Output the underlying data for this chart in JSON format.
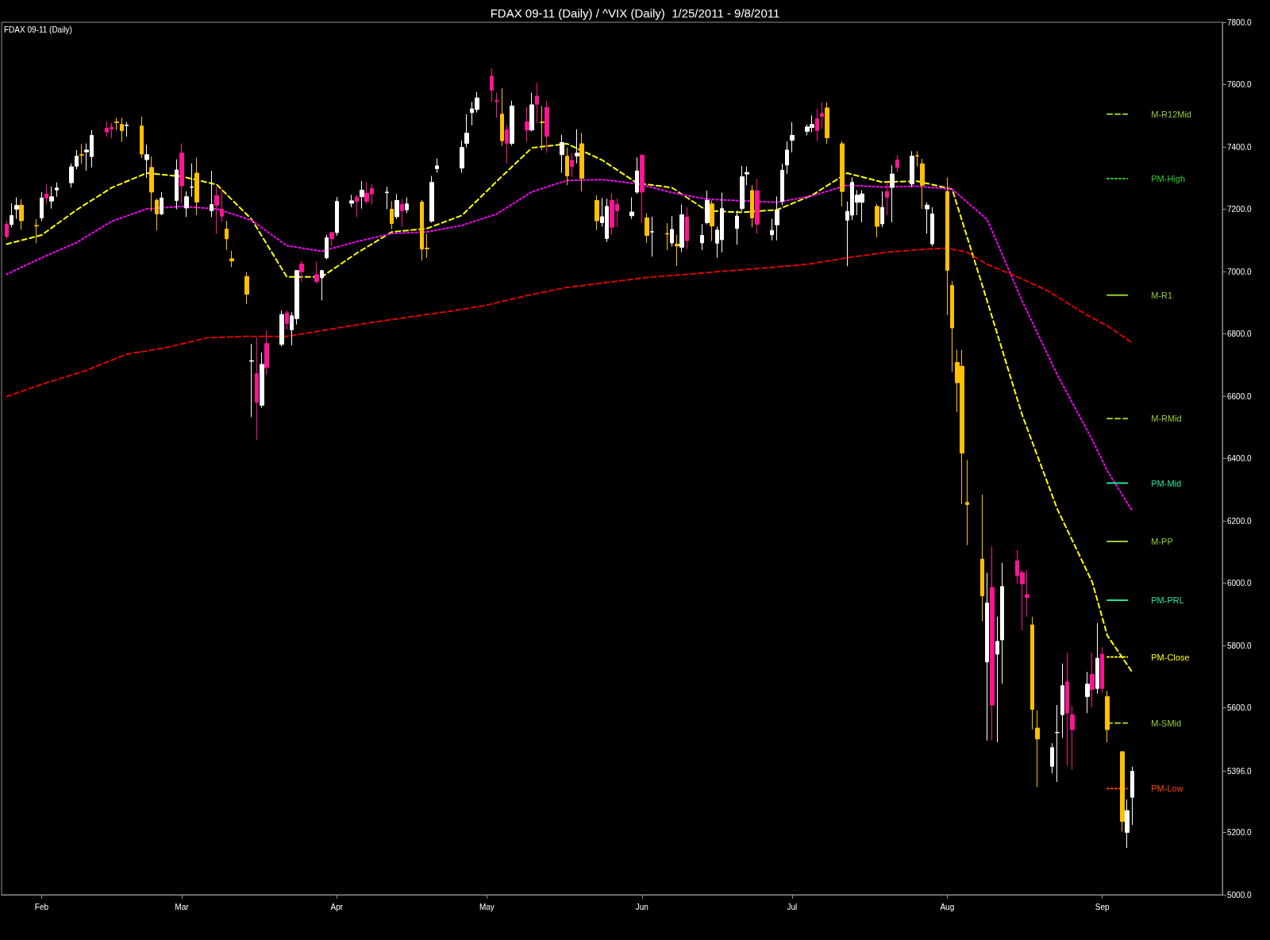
{
  "chart_data": {
    "type": "candlestick",
    "title": "FDAX 09-11 (Daily) / ^VIX (Daily)  1/25/2011 - 9/8/2011",
    "subtitle": "FDAX 09-11 (Daily)",
    "marker": "none",
    "xlim": [
      "2011-01-24",
      "2011-09-25"
    ],
    "xticks": [
      {
        "value": "2011-02-01",
        "label": "Feb"
      },
      {
        "value": "2011-03-01",
        "label": "Mar"
      },
      {
        "value": "2011-04-01",
        "label": "Apr"
      },
      {
        "value": "2011-05-01",
        "label": "May"
      },
      {
        "value": "2011-06-01",
        "label": "Jun"
      },
      {
        "value": "2011-07-01",
        "label": "Jul"
      },
      {
        "value": "2011-08-01",
        "label": "Aug"
      },
      {
        "value": "2011-09-01",
        "label": "Sep"
      }
    ],
    "ylim": [
      5000,
      7800
    ],
    "yticks": [
      {
        "value": 5000,
        "label": "5000.0"
      },
      {
        "value": 5200,
        "label": "5200.0"
      },
      {
        "value": 5396,
        "label": "5396.0"
      },
      {
        "value": 5600,
        "label": "5600.0"
      },
      {
        "value": 5800,
        "label": "5800.0"
      },
      {
        "value": 6000,
        "label": "6000.0"
      },
      {
        "value": 6200,
        "label": "6200.0"
      },
      {
        "value": 6400,
        "label": "6400.0"
      },
      {
        "value": 6600,
        "label": "6600.0"
      },
      {
        "value": 6800,
        "label": "6800.0"
      },
      {
        "value": 7000,
        "label": "7000.0"
      },
      {
        "value": 7200,
        "label": "7200.0"
      },
      {
        "value": 7400,
        "label": "7400.0"
      },
      {
        "value": 7600,
        "label": "7600.0"
      },
      {
        "value": 7800,
        "label": "7800.0"
      }
    ],
    "x": [
      "2011-01-25",
      "2011-01-26",
      "2011-01-27",
      "2011-01-28",
      "2011-01-31",
      "2011-02-01",
      "2011-02-02",
      "2011-02-03",
      "2011-02-04",
      "2011-02-07",
      "2011-02-08",
      "2011-02-09",
      "2011-02-10",
      "2011-02-11",
      "2011-02-14",
      "2011-02-15",
      "2011-02-16",
      "2011-02-17",
      "2011-02-18",
      "2011-02-21",
      "2011-02-22",
      "2011-02-23",
      "2011-02-24",
      "2011-02-25",
      "2011-02-28",
      "2011-03-01",
      "2011-03-02",
      "2011-03-03",
      "2011-03-04",
      "2011-03-07",
      "2011-03-08",
      "2011-03-09",
      "2011-03-10",
      "2011-03-11",
      "2011-03-14",
      "2011-03-15",
      "2011-03-16",
      "2011-03-17",
      "2011-03-18",
      "2011-03-21",
      "2011-03-22",
      "2011-03-23",
      "2011-03-24",
      "2011-03-25",
      "2011-03-28",
      "2011-03-29",
      "2011-03-30",
      "2011-03-31",
      "2011-04-01",
      "2011-04-04",
      "2011-04-05",
      "2011-04-06",
      "2011-04-07",
      "2011-04-08",
      "2011-04-11",
      "2011-04-12",
      "2011-04-13",
      "2011-04-14",
      "2011-04-15",
      "2011-04-18",
      "2011-04-19",
      "2011-04-20",
      "2011-04-21",
      "2011-04-26",
      "2011-04-27",
      "2011-04-28",
      "2011-04-29",
      "2011-05-02",
      "2011-05-03",
      "2011-05-04",
      "2011-05-05",
      "2011-05-06",
      "2011-05-09",
      "2011-05-10",
      "2011-05-11",
      "2011-05-12",
      "2011-05-13",
      "2011-05-16",
      "2011-05-17",
      "2011-05-18",
      "2011-05-19",
      "2011-05-20",
      "2011-05-23",
      "2011-05-24",
      "2011-05-25",
      "2011-05-26",
      "2011-05-27",
      "2011-05-30",
      "2011-05-31",
      "2011-06-01",
      "2011-06-02",
      "2011-06-03",
      "2011-06-06",
      "2011-06-07",
      "2011-06-08",
      "2011-06-09",
      "2011-06-10",
      "2011-06-13",
      "2011-06-14",
      "2011-06-15",
      "2011-06-16",
      "2011-06-17",
      "2011-06-20",
      "2011-06-21",
      "2011-06-22",
      "2011-06-23",
      "2011-06-24",
      "2011-06-27",
      "2011-06-28",
      "2011-06-29",
      "2011-06-30",
      "2011-07-01",
      "2011-07-04",
      "2011-07-05",
      "2011-07-06",
      "2011-07-07",
      "2011-07-08",
      "2011-07-11",
      "2011-07-12",
      "2011-07-13",
      "2011-07-14",
      "2011-07-15",
      "2011-07-18",
      "2011-07-19",
      "2011-07-20",
      "2011-07-21",
      "2011-07-22",
      "2011-07-25",
      "2011-07-26",
      "2011-07-27",
      "2011-07-28",
      "2011-07-29",
      "2011-08-01",
      "2011-08-02",
      "2011-08-03",
      "2011-08-04",
      "2011-08-05",
      "2011-08-08",
      "2011-08-09",
      "2011-08-10",
      "2011-08-11",
      "2011-08-12",
      "2011-08-15",
      "2011-08-16",
      "2011-08-17",
      "2011-08-18",
      "2011-08-19",
      "2011-08-22",
      "2011-08-23",
      "2011-08-24",
      "2011-08-25",
      "2011-08-26",
      "2011-08-29",
      "2011-08-30",
      "2011-08-31",
      "2011-09-01",
      "2011-09-02",
      "2011-09-05",
      "2011-09-06",
      "2011-09-07"
    ],
    "ohlc": [
      [
        7151,
        7163,
        7104,
        7112
      ],
      [
        7151,
        7219,
        7142,
        7180
      ],
      [
        7200,
        7238,
        7169,
        7212
      ],
      [
        7213,
        7232,
        7134,
        7163
      ],
      [
        7148,
        7168,
        7091,
        7146
      ],
      [
        7172,
        7255,
        7161,
        7236
      ],
      [
        7249,
        7279,
        7215,
        7236
      ],
      [
        7226,
        7272,
        7202,
        7240
      ],
      [
        7262,
        7286,
        7240,
        7268
      ],
      [
        7285,
        7347,
        7269,
        7336
      ],
      [
        7338,
        7390,
        7328,
        7370
      ],
      [
        7375,
        7409,
        7346,
        7373
      ],
      [
        7384,
        7411,
        7324,
        7390
      ],
      [
        7369,
        7454,
        7334,
        7437
      ],
      [
        7460,
        7482,
        7433,
        7448
      ],
      [
        7463,
        7477,
        7428,
        7457
      ],
      [
        7480,
        7493,
        7454,
        7478
      ],
      [
        7472,
        7493,
        7416,
        7452
      ],
      [
        7468,
        7480,
        7433,
        7470
      ],
      [
        7467,
        7497,
        7364,
        7377
      ],
      [
        7359,
        7407,
        7300,
        7375
      ],
      [
        7334,
        7369,
        7193,
        7255
      ],
      [
        7229,
        7234,
        7132,
        7185
      ],
      [
        7185,
        7255,
        7181,
        7236
      ],
      [
        7228,
        7360,
        7200,
        7326
      ],
      [
        7380,
        7411,
        7219,
        7275
      ],
      [
        7204,
        7257,
        7175,
        7240
      ],
      [
        7270,
        7347,
        7240,
        7272
      ],
      [
        7316,
        7366,
        7181,
        7223
      ],
      [
        7195,
        7323,
        7175,
        7215
      ],
      [
        7243,
        7272,
        7121,
        7212
      ],
      [
        7200,
        7266,
        7159,
        7178
      ],
      [
        7136,
        7163,
        7069,
        7105
      ],
      [
        7041,
        7067,
        7014,
        7034
      ],
      [
        6984,
        6997,
        6896,
        6927
      ],
      [
        6712,
        6768,
        6533,
        6714
      ],
      [
        6672,
        6787,
        6460,
        6580
      ],
      [
        6571,
        6740,
        6563,
        6702
      ],
      [
        6769,
        6810,
        6668,
        6692
      ],
      [
        6766,
        6875,
        6759,
        6862
      ],
      [
        6867,
        6875,
        6813,
        6833
      ],
      [
        6813,
        6869,
        6763,
        6858
      ],
      [
        6849,
        7005,
        6830,
        7003
      ],
      [
        7024,
        7035,
        6967,
        6999
      ],
      [
        6990,
        7031,
        6961,
        6968
      ],
      [
        6980,
        7005,
        6907,
        7003
      ],
      [
        7044,
        7118,
        7039,
        7108
      ],
      [
        7125,
        7127,
        7082,
        7105
      ],
      [
        7125,
        7239,
        7115,
        7225
      ],
      [
        7219,
        7246,
        7206,
        7227
      ],
      [
        7239,
        7246,
        7175,
        7225
      ],
      [
        7240,
        7290,
        7202,
        7261
      ],
      [
        7251,
        7287,
        7217,
        7225
      ],
      [
        7266,
        7280,
        7215,
        7249
      ],
      [
        7253,
        7272,
        7200,
        7255
      ],
      [
        7200,
        7226,
        7136,
        7154
      ],
      [
        7176,
        7249,
        7169,
        7228
      ],
      [
        7216,
        7232,
        7144,
        7195
      ],
      [
        7198,
        7238,
        7187,
        7217
      ],
      [
        7223,
        7229,
        7035,
        7072
      ],
      [
        7075,
        7121,
        7044,
        7073
      ],
      [
        7162,
        7307,
        7157,
        7286
      ],
      [
        7330,
        7363,
        7317,
        7339
      ],
      [
        7332,
        7420,
        7317,
        7398
      ],
      [
        7411,
        7505,
        7398,
        7444
      ],
      [
        7510,
        7544,
        7469,
        7522
      ],
      [
        7520,
        7576,
        7510,
        7557
      ],
      [
        7627,
        7652,
        7544,
        7582
      ],
      [
        7548,
        7574,
        7494,
        7546
      ],
      [
        7505,
        7588,
        7403,
        7420
      ],
      [
        7454,
        7471,
        7347,
        7411
      ],
      [
        7411,
        7548,
        7404,
        7531
      ],
      [
        7480,
        7528,
        7417,
        7454
      ],
      [
        7454,
        7574,
        7450,
        7535
      ],
      [
        7563,
        7605,
        7475,
        7537
      ],
      [
        7480,
        7531,
        7390,
        7478
      ],
      [
        7527,
        7548,
        7381,
        7434
      ],
      [
        7375,
        7439,
        7317,
        7414
      ],
      [
        7370,
        7398,
        7277,
        7307
      ],
      [
        7357,
        7380,
        7304,
        7337
      ],
      [
        7371,
        7457,
        7347,
        7380
      ],
      [
        7410,
        7445,
        7257,
        7299
      ],
      [
        7228,
        7245,
        7133,
        7163
      ],
      [
        7157,
        7236,
        7144,
        7176
      ],
      [
        7106,
        7234,
        7095,
        7209
      ],
      [
        7228,
        7252,
        7118,
        7142
      ],
      [
        7216,
        7234,
        7142,
        7195
      ],
      [
        7179,
        7238,
        7169,
        7191
      ],
      [
        7255,
        7366,
        7249,
        7323
      ],
      [
        7373,
        7377,
        7155,
        7255
      ],
      [
        7172,
        7187,
        7092,
        7116
      ],
      [
        7127,
        7176,
        7048,
        7128
      ],
      [
        7122,
        7155,
        7069,
        7120
      ],
      [
        7092,
        7178,
        7080,
        7135
      ],
      [
        7088,
        7118,
        7018,
        7082
      ],
      [
        7078,
        7215,
        7063,
        7182
      ],
      [
        7175,
        7206,
        7072,
        7099
      ],
      [
        7092,
        7152,
        7069,
        7116
      ],
      [
        7157,
        7260,
        7151,
        7228
      ],
      [
        7217,
        7228,
        7098,
        7146
      ],
      [
        7091,
        7144,
        7044,
        7133
      ],
      [
        7102,
        7253,
        7061,
        7202
      ],
      [
        7138,
        7195,
        7086,
        7178
      ],
      [
        7202,
        7339,
        7193,
        7304
      ],
      [
        7313,
        7337,
        7277,
        7318
      ],
      [
        7260,
        7277,
        7142,
        7172
      ],
      [
        7259,
        7298,
        7121,
        7152
      ],
      [
        7118,
        7169,
        7100,
        7132
      ],
      [
        7150,
        7241,
        7100,
        7198
      ],
      [
        7225,
        7346,
        7213,
        7325
      ],
      [
        7342,
        7418,
        7313,
        7390
      ],
      [
        7421,
        7479,
        7382,
        7437
      ],
      [
        7450,
        7472,
        7437,
        7464
      ],
      [
        7462,
        7501,
        7447,
        7472
      ],
      [
        7490,
        7522,
        7418,
        7453
      ],
      [
        7507,
        7543,
        7458,
        7498
      ],
      [
        7525,
        7543,
        7410,
        7429
      ],
      [
        7410,
        7418,
        7209,
        7257
      ],
      [
        7165,
        7225,
        7017,
        7193
      ],
      [
        7181,
        7302,
        7165,
        7286
      ],
      [
        7222,
        7261,
        7181,
        7245
      ],
      [
        7222,
        7261,
        7158,
        7249
      ],
      [
        7209,
        7217,
        7110,
        7145
      ],
      [
        7153,
        7257,
        7142,
        7206
      ],
      [
        7257,
        7286,
        7181,
        7238
      ],
      [
        7270,
        7341,
        7158,
        7313
      ],
      [
        7358,
        7373,
        7318,
        7334
      ],
      [
        7281,
        7386,
        7270,
        7370
      ],
      [
        7372,
        7386,
        7338,
        7370
      ],
      [
        7346,
        7362,
        7201,
        7277
      ],
      [
        7201,
        7222,
        7121,
        7213
      ],
      [
        7089,
        7206,
        7081,
        7185
      ],
      [
        7257,
        7302,
        6860,
        7004
      ],
      [
        6955,
        6969,
        6678,
        6819
      ],
      [
        6708,
        6749,
        6549,
        6643
      ],
      [
        6696,
        6749,
        6254,
        6417
      ],
      [
        6259,
        6395,
        6122,
        6252
      ],
      [
        6077,
        6284,
        5878,
        5959
      ],
      [
        5747,
        6033,
        5495,
        5936
      ],
      [
        5986,
        6118,
        5495,
        5609
      ],
      [
        5772,
        5892,
        5489,
        5813
      ],
      [
        5818,
        6065,
        5677,
        5989
      ],
      [
        6072,
        6107,
        5998,
        6024
      ],
      [
        6033,
        6042,
        5848,
        5998
      ],
      [
        5963,
        6042,
        5892,
        5954
      ],
      [
        5866,
        5892,
        5530,
        5595
      ],
      [
        5535,
        5592,
        5345,
        5500
      ],
      [
        5412,
        5486,
        5389,
        5472
      ],
      [
        5520,
        5609,
        5362,
        5521
      ],
      [
        5578,
        5742,
        5503,
        5671
      ],
      [
        5683,
        5777,
        5415,
        5583
      ],
      [
        5578,
        5606,
        5401,
        5530
      ],
      [
        5636,
        5715,
        5583,
        5676
      ],
      [
        5707,
        5777,
        5601,
        5659
      ],
      [
        5662,
        5871,
        5645,
        5759
      ],
      [
        5772,
        5795,
        5648,
        5662
      ],
      [
        5636,
        5654,
        5489,
        5530
      ],
      [
        5459,
        5459,
        5203,
        5235
      ],
      [
        5200,
        5306,
        5150,
        5270
      ],
      [
        5313,
        5411,
        5224,
        5396
      ]
    ],
    "colors": [
      "#ff1493",
      "#ffffff",
      "#ffffff",
      "#ffc000",
      "#ffc000",
      "#ffffff",
      "#ff1493",
      "#ffffff",
      "#ffffff",
      "#ffffff",
      "#ffffff",
      "#ffc000",
      "#ffffff",
      "#ffffff",
      "#ff1493",
      "#ff1493",
      "#ffc000",
      "#ffc000",
      "#ffffff",
      "#ffc000",
      "#ffffff",
      "#ffc000",
      "#ffc000",
      "#ffffff",
      "#ffffff",
      "#ff1493",
      "#ffffff",
      "#ffffff",
      "#ffc000",
      "#ffffff",
      "#ff1493",
      "#ff1493",
      "#ffc000",
      "#ffc000",
      "#ffc000",
      "#ffffff",
      "#ff1493",
      "#ffffff",
      "#ff1493",
      "#ffffff",
      "#ff1493",
      "#ffffff",
      "#ffffff",
      "#ff1493",
      "#ff1493",
      "#ffffff",
      "#ffffff",
      "#ff1493",
      "#ffffff",
      "#ffffff",
      "#ff1493",
      "#ffffff",
      "#ff1493",
      "#ff1493",
      "#ffffff",
      "#ffc000",
      "#ffffff",
      "#ff1493",
      "#ffffff",
      "#ffc000",
      "#ffc000",
      "#ffffff",
      "#ffffff",
      "#ffffff",
      "#ffffff",
      "#ffffff",
      "#ffffff",
      "#ff1493",
      "#ff1493",
      "#ffc000",
      "#ff1493",
      "#ffffff",
      "#ff1493",
      "#ffffff",
      "#ff1493",
      "#ffc000",
      "#ff1493",
      "#ffffff",
      "#ffc000",
      "#ff1493",
      "#ffffff",
      "#ffc000",
      "#ffc000",
      "#ffffff",
      "#ffffff",
      "#ff1493",
      "#ff1493",
      "#ffffff",
      "#ffffff",
      "#ff1493",
      "#ffc000",
      "#ffffff",
      "#ffc000",
      "#ffffff",
      "#ffc000",
      "#ffffff",
      "#ff1493",
      "#ffffff",
      "#ffffff",
      "#ffc000",
      "#ffffff",
      "#ffffff",
      "#ffffff",
      "#ffffff",
      "#ffffff",
      "#ffc000",
      "#ff1493",
      "#ffffff",
      "#ffffff",
      "#ffffff",
      "#ffffff",
      "#ffffff",
      "#ffffff",
      "#ffffff",
      "#ff1493",
      "#ff1493",
      "#ffc000",
      "#ffc000",
      "#ffffff",
      "#ffffff",
      "#ffffff",
      "#ffffff",
      "#ffc000",
      "#ffffff",
      "#ff1493",
      "#ffffff",
      "#ff1493",
      "#ffffff",
      "#ffc000",
      "#ffc000",
      "#ffffff",
      "#ffffff",
      "#ffc000",
      "#ffc000",
      "#ffc000",
      "#ffc000",
      "#ffc000",
      "#ffc000",
      "#ffffff",
      "#ff1493",
      "#ffffff",
      "#ffffff",
      "#ff1493",
      "#ff1493",
      "#ff1493",
      "#ffc000",
      "#ffc000",
      "#ffffff",
      "#ffffff",
      "#ffffff",
      "#ff1493",
      "#ff1493",
      "#ffffff",
      "#ff1493",
      "#ffffff",
      "#ff1493",
      "#ffc000",
      "#ffc000",
      "#ffffff",
      "#ffffff"
    ],
    "series": [
      {
        "type": "line",
        "color": "#ffff00",
        "line_style": "dashed",
        "x": [
          "2011-01-25",
          "2011-02-01",
          "2011-02-08",
          "2011-02-15",
          "2011-02-22",
          "2011-03-01",
          "2011-03-08",
          "2011-03-15",
          "2011-03-22",
          "2011-03-29",
          "2011-04-05",
          "2011-04-12",
          "2011-04-19",
          "2011-04-26",
          "2011-05-03",
          "2011-05-10",
          "2011-05-17",
          "2011-05-24",
          "2011-05-31",
          "2011-06-07",
          "2011-06-14",
          "2011-06-21",
          "2011-06-28",
          "2011-07-05",
          "2011-07-12",
          "2011-07-19",
          "2011-07-26",
          "2011-08-02",
          "2011-08-09",
          "2011-08-16",
          "2011-08-23",
          "2011-08-30",
          "2011-09-02",
          "2011-09-07"
        ],
        "values": [
          7088,
          7117,
          7198,
          7269,
          7316,
          7305,
          7279,
          7167,
          6983,
          6983,
          7059,
          7127,
          7138,
          7180,
          7290,
          7397,
          7410,
          7358,
          7284,
          7269,
          7195,
          7190,
          7198,
          7245,
          7316,
          7287,
          7290,
          7264,
          6905,
          6539,
          6238,
          6003,
          5832,
          5714
        ]
      },
      {
        "type": "line",
        "color": "#ff00ff",
        "line_style": "dotted",
        "x": [
          "2011-01-25",
          "2011-02-01",
          "2011-02-08",
          "2011-02-15",
          "2011-02-22",
          "2011-03-01",
          "2011-03-08",
          "2011-03-15",
          "2011-03-22",
          "2011-03-29",
          "2011-04-05",
          "2011-04-12",
          "2011-04-19",
          "2011-04-26",
          "2011-05-03",
          "2011-05-10",
          "2011-05-17",
          "2011-05-24",
          "2011-05-31",
          "2011-06-07",
          "2011-06-14",
          "2011-06-21",
          "2011-06-28",
          "2011-07-05",
          "2011-07-12",
          "2011-07-19",
          "2011-07-26",
          "2011-08-02",
          "2011-08-09",
          "2011-08-16",
          "2011-08-23",
          "2011-08-30",
          "2011-09-02",
          "2011-09-07"
        ],
        "values": [
          6991,
          7044,
          7093,
          7161,
          7201,
          7209,
          7201,
          7164,
          7083,
          7065,
          7096,
          7122,
          7127,
          7148,
          7185,
          7256,
          7292,
          7295,
          7282,
          7253,
          7232,
          7227,
          7222,
          7243,
          7277,
          7271,
          7274,
          7264,
          7167,
          6905,
          6669,
          6460,
          6361,
          6232
        ]
      },
      {
        "type": "line",
        "color": "#e00000",
        "line_style": "dashed",
        "x": [
          "2011-01-25",
          "2011-02-02",
          "2011-02-10",
          "2011-02-18",
          "2011-02-26",
          "2011-03-06",
          "2011-03-14",
          "2011-03-22",
          "2011-03-30",
          "2011-04-07",
          "2011-04-15",
          "2011-04-23",
          "2011-05-01",
          "2011-05-09",
          "2011-05-17",
          "2011-05-25",
          "2011-06-02",
          "2011-06-10",
          "2011-06-18",
          "2011-06-26",
          "2011-07-04",
          "2011-07-12",
          "2011-07-20",
          "2011-07-28",
          "2011-08-01",
          "2011-08-05",
          "2011-08-09",
          "2011-08-15",
          "2011-08-21",
          "2011-08-29",
          "2011-09-02",
          "2011-09-07"
        ],
        "values": [
          6599,
          6643,
          6683,
          6735,
          6756,
          6787,
          6792,
          6792,
          6813,
          6834,
          6853,
          6871,
          6892,
          6923,
          6949,
          6965,
          6981,
          6991,
          7002,
          7012,
          7023,
          7044,
          7062,
          7072,
          7075,
          7062,
          7023,
          6983,
          6939,
          6860,
          6826,
          6771
        ]
      },
      {
        "type": "line",
        "name": "M-R12Mid",
        "color": "#9acd32",
        "line_style": "dashed",
        "x": [
          "2011-09-02",
          "2011-09-06"
        ],
        "values": [
          7505,
          7505
        ]
      },
      {
        "type": "line",
        "name": "PM-High",
        "color": "#32cd32",
        "line_style": "dotted",
        "x": [
          "2011-09-02",
          "2011-09-06"
        ],
        "values": [
          7298,
          7298
        ]
      },
      {
        "type": "line",
        "name": "M-R1",
        "color": "#9acd32",
        "line_style": "solid",
        "x": [
          "2011-09-02",
          "2011-09-06"
        ],
        "values": [
          6924,
          6924
        ]
      },
      {
        "type": "line",
        "name": "M-RMid",
        "color": "#9acd32",
        "line_style": "dashed",
        "x": [
          "2011-09-02",
          "2011-09-06"
        ],
        "values": [
          6528,
          6528
        ]
      },
      {
        "type": "line",
        "name": "PM-Mid",
        "color": "#1ee6a0",
        "line_style": "solid",
        "x": [
          "2011-09-02",
          "2011-09-06"
        ],
        "values": [
          6321,
          6321
        ]
      },
      {
        "type": "line",
        "name": "M-PP",
        "color": "#9acd32",
        "line_style": "solid",
        "x": [
          "2011-09-02",
          "2011-09-06"
        ],
        "values": [
          6134,
          6134
        ]
      },
      {
        "type": "line",
        "name": "PM-PRL",
        "color": "#1ee6a0",
        "line_style": "solid",
        "x": [
          "2011-09-02",
          "2011-09-06"
        ],
        "values": [
          5945,
          5945
        ]
      },
      {
        "type": "line",
        "name": "PM-Close",
        "color": "#ffff00",
        "line_style": "dotted",
        "x": [
          "2011-09-02",
          "2011-09-06"
        ],
        "values": [
          5763,
          5763
        ]
      },
      {
        "type": "line",
        "name": "M-SMid",
        "color": "#9acd32",
        "line_style": "dashed",
        "x": [
          "2011-09-02",
          "2011-09-06"
        ],
        "values": [
          5551,
          5551
        ]
      },
      {
        "type": "line",
        "name": "PM-Low",
        "color": "#ff4500",
        "line_style": "dotted",
        "x": [
          "2011-09-02",
          "2011-09-06"
        ],
        "values": [
          5341,
          5341
        ]
      }
    ]
  }
}
